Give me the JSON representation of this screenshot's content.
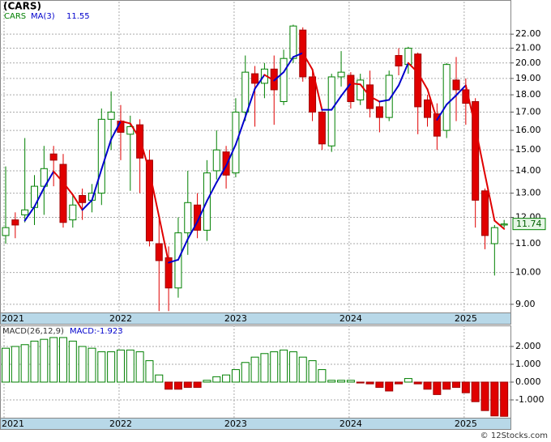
{
  "chart_data": {
    "type": "candlestick",
    "title": "(CARS)",
    "log_scale": true,
    "grid": true,
    "up_color": "#008000",
    "down_color": "#e00000",
    "ma_up_color": "#0000cc",
    "ma_down_color": "#e00000",
    "categories": [
      "2021",
      null,
      null,
      null,
      null,
      null,
      null,
      null,
      null,
      null,
      null,
      null,
      "2022",
      null,
      null,
      null,
      null,
      null,
      null,
      null,
      null,
      null,
      null,
      null,
      "2023",
      null,
      null,
      null,
      null,
      null,
      null,
      null,
      null,
      null,
      null,
      null,
      "2024",
      null,
      null,
      null,
      null,
      null,
      null,
      null,
      null,
      null,
      null,
      null,
      "2025",
      null,
      null,
      null,
      null
    ],
    "series": [
      {
        "name": "CARS",
        "open": [
          11.3,
          11.9,
          12.1,
          12.4,
          13.3,
          14.8,
          14.3,
          11.9,
          12.9,
          12.7,
          13.0,
          16.6,
          16.5,
          15.8,
          16.3,
          14.5,
          11.0,
          10.5,
          9.5,
          11.4,
          12.5,
          11.5,
          14.0,
          14.9,
          13.9,
          17.0,
          19.3,
          18.7,
          19.6,
          17.6,
          20.3,
          22.3,
          19.1,
          17.0,
          15.2,
          19.1,
          19.2,
          17.7,
          18.6,
          17.3,
          16.7,
          20.5,
          19.9,
          20.6,
          17.7,
          16.9,
          16.0,
          18.9,
          18.3,
          17.6,
          13.1,
          11.0,
          11.7
        ],
        "high": [
          14.2,
          12.2,
          15.6,
          13.8,
          15.2,
          15.2,
          14.8,
          12.9,
          13.2,
          13.4,
          17.2,
          18.2,
          17.4,
          16.8,
          16.6,
          15.0,
          12.0,
          10.9,
          12.0,
          14.0,
          13.0,
          14.5,
          16.0,
          15.2,
          17.8,
          20.5,
          19.8,
          20.0,
          20.5,
          20.9,
          22.7,
          22.5,
          19.5,
          17.2,
          19.3,
          20.8,
          19.4,
          19.3,
          19.5,
          17.6,
          19.5,
          21.0,
          21.1,
          20.7,
          18.0,
          17.5,
          20.0,
          20.4,
          19.0,
          17.8,
          13.2,
          11.7,
          11.9
        ],
        "low": [
          11.0,
          11.2,
          11.8,
          11.7,
          12.1,
          13.3,
          11.6,
          11.6,
          11.9,
          12.2,
          12.5,
          15.0,
          14.5,
          13.1,
          13.0,
          10.9,
          8.8,
          8.8,
          9.2,
          10.6,
          11.2,
          11.1,
          13.6,
          13.2,
          13.7,
          16.5,
          16.2,
          17.8,
          16.3,
          17.4,
          20.0,
          18.8,
          16.5,
          15.0,
          14.9,
          18.5,
          17.2,
          17.4,
          16.7,
          15.9,
          16.5,
          19.2,
          19.3,
          15.8,
          16.2,
          15.0,
          15.6,
          16.5,
          16.3,
          11.6,
          10.8,
          9.9,
          11.6
        ],
        "close": [
          11.6,
          11.7,
          12.3,
          13.3,
          14.1,
          14.5,
          11.8,
          12.5,
          12.6,
          13.0,
          16.6,
          17.0,
          15.9,
          16.2,
          14.6,
          11.1,
          10.4,
          9.5,
          11.4,
          12.6,
          11.5,
          13.9,
          15.0,
          13.8,
          17.0,
          19.4,
          18.7,
          19.6,
          18.3,
          20.3,
          22.6,
          19.1,
          17.0,
          15.3,
          19.1,
          19.4,
          17.6,
          18.9,
          17.2,
          16.7,
          19.2,
          19.8,
          21.0,
          17.3,
          16.7,
          15.7,
          19.9,
          18.3,
          17.5,
          12.7,
          11.3,
          11.6,
          11.74
        ]
      },
      {
        "name": "MA(3)",
        "values": [
          null,
          null,
          11.87,
          12.43,
          13.23,
          13.97,
          13.47,
          12.93,
          12.3,
          12.7,
          14.07,
          15.53,
          16.5,
          16.37,
          15.57,
          13.97,
          12.03,
          10.33,
          10.43,
          11.17,
          11.83,
          12.67,
          13.47,
          14.23,
          15.27,
          16.73,
          18.37,
          19.23,
          18.87,
          19.4,
          20.4,
          20.67,
          19.57,
          17.13,
          17.13,
          17.93,
          18.7,
          18.63,
          17.9,
          17.6,
          17.7,
          18.57,
          20.0,
          19.37,
          18.33,
          16.57,
          17.43,
          17.97,
          18.57,
          16.17,
          13.83,
          11.87,
          11.55
        ]
      }
    ],
    "last_price": 11.74,
    "ylim": [
      8.76,
      24.5
    ],
    "yticks": [
      {
        "value": 9,
        "label": "9.00"
      },
      {
        "value": 10,
        "label": "10.00"
      },
      {
        "value": 11,
        "label": "11.00"
      },
      {
        "value": 12,
        "label": "12.00"
      },
      {
        "value": 13,
        "label": "13.00"
      },
      {
        "value": 14,
        "label": "14.00"
      },
      {
        "value": 15,
        "label": "15.00"
      },
      {
        "value": 16,
        "label": "16.00"
      },
      {
        "value": 17,
        "label": "17.00"
      },
      {
        "value": 18,
        "label": "18.00"
      },
      {
        "value": 19,
        "label": "19.00"
      },
      {
        "value": 20,
        "label": "20.00"
      },
      {
        "value": 21,
        "label": "21.00"
      },
      {
        "value": 22,
        "label": "22.00"
      }
    ],
    "macd": {
      "name": "MACD(26,12,9)",
      "label": "MACD:-1.923",
      "values": [
        1.9,
        2.0,
        2.1,
        2.3,
        2.4,
        2.5,
        2.5,
        2.3,
        2.0,
        1.9,
        1.7,
        1.7,
        1.8,
        1.8,
        1.7,
        1.2,
        0.4,
        -0.4,
        -0.4,
        -0.3,
        -0.3,
        0.1,
        0.3,
        0.4,
        0.7,
        1.1,
        1.4,
        1.6,
        1.7,
        1.8,
        1.7,
        1.4,
        1.2,
        0.7,
        0.1,
        0.1,
        0.1,
        -0.05,
        -0.1,
        -0.3,
        -0.5,
        -0.1,
        0.2,
        -0.1,
        -0.4,
        -0.7,
        -0.4,
        -0.3,
        -0.6,
        -1.1,
        -1.6,
        -1.9,
        -1.923
      ],
      "ylim": [
        -2.0,
        3.18
      ],
      "yticks": [
        {
          "value": -1,
          "label": "-1.000"
        },
        {
          "value": 0,
          "label": "0.000"
        },
        {
          "value": 1,
          "label": "1.000"
        },
        {
          "value": 2,
          "label": "2.000"
        }
      ]
    },
    "footer": "© 12Stocks.com"
  }
}
